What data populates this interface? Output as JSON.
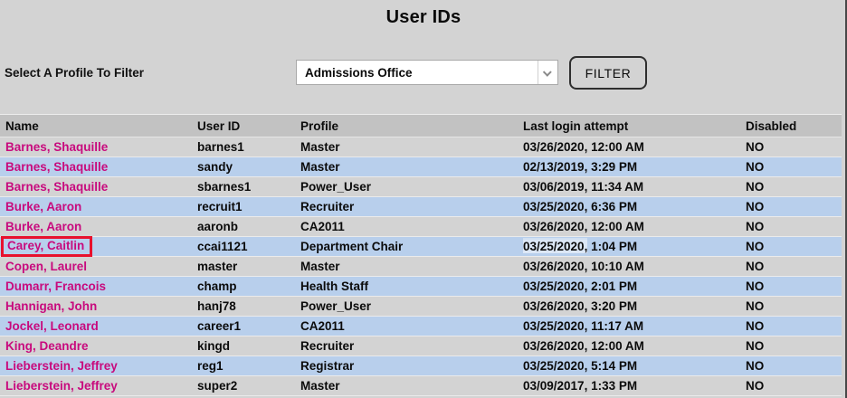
{
  "page": {
    "title": "User IDs"
  },
  "filter_bar": {
    "label": "Select A Profile To Filter",
    "dropdown_value": "Admissions Office",
    "button_label": "FILTER"
  },
  "colors": {
    "page_background": "#d3d3d3",
    "header_row_background": "#c2c2c2",
    "alt_row_background": "#b8cfec",
    "name_link": "#c80a7d",
    "highlight_box_border": "#e8112d"
  },
  "icons": {
    "dropdown_arrow": "chevron-down"
  },
  "table": {
    "columns": [
      "Name",
      "User ID",
      "Profile",
      "Last login attempt",
      "Disabled"
    ],
    "rows": [
      {
        "name": "Barnes, Shaquille",
        "user_id": "barnes1",
        "profile": "Master",
        "last_login": "03/26/2020, 12:00 AM",
        "disabled": "NO"
      },
      {
        "name": "Barnes, Shaquille",
        "user_id": "sandy",
        "profile": "Master",
        "last_login": "02/13/2019, 3:29 PM",
        "disabled": "NO"
      },
      {
        "name": "Barnes, Shaquille",
        "user_id": "sbarnes1",
        "profile": "Power_User",
        "last_login": "03/06/2019, 11:34 AM",
        "disabled": "NO"
      },
      {
        "name": "Burke, Aaron",
        "user_id": "recruit1",
        "profile": "Recruiter",
        "last_login": "03/25/2020, 6:36 PM",
        "disabled": "NO"
      },
      {
        "name": "Burke, Aaron",
        "user_id": "aaronb",
        "profile": "CA2011",
        "last_login": "03/26/2020, 12:00 AM",
        "disabled": "NO"
      },
      {
        "name": "Carey, Caitlin",
        "user_id": "ccai1121",
        "profile": "Department Chair",
        "last_login": "03/25/2020, 1:04 PM",
        "disabled": "NO",
        "name_highlighted": true,
        "login_highlight_prefix": "03/25/2020,"
      },
      {
        "name": "Copen, Laurel",
        "user_id": "master",
        "profile": "Master",
        "last_login": "03/26/2020, 10:10 AM",
        "disabled": "NO"
      },
      {
        "name": "Dumarr, Francois",
        "user_id": "champ",
        "profile": "Health Staff",
        "last_login": "03/25/2020, 2:01 PM",
        "disabled": "NO"
      },
      {
        "name": "Hannigan, John",
        "user_id": "hanj78",
        "profile": "Power_User",
        "last_login": "03/26/2020, 3:20 PM",
        "disabled": "NO"
      },
      {
        "name": "Jockel, Leonard",
        "user_id": "career1",
        "profile": "CA2011",
        "last_login": "03/25/2020, 11:17 AM",
        "disabled": "NO"
      },
      {
        "name": "King, Deandre",
        "user_id": "kingd",
        "profile": "Recruiter",
        "last_login": "03/26/2020, 12:00 AM",
        "disabled": "NO"
      },
      {
        "name": "Lieberstein, Jeffrey",
        "user_id": "reg1",
        "profile": "Registrar",
        "last_login": "03/25/2020, 5:14 PM",
        "disabled": "NO"
      },
      {
        "name": "Lieberstein, Jeffrey",
        "user_id": "super2",
        "profile": "Master",
        "last_login": "03/09/2017, 1:33 PM",
        "disabled": "NO"
      }
    ]
  }
}
